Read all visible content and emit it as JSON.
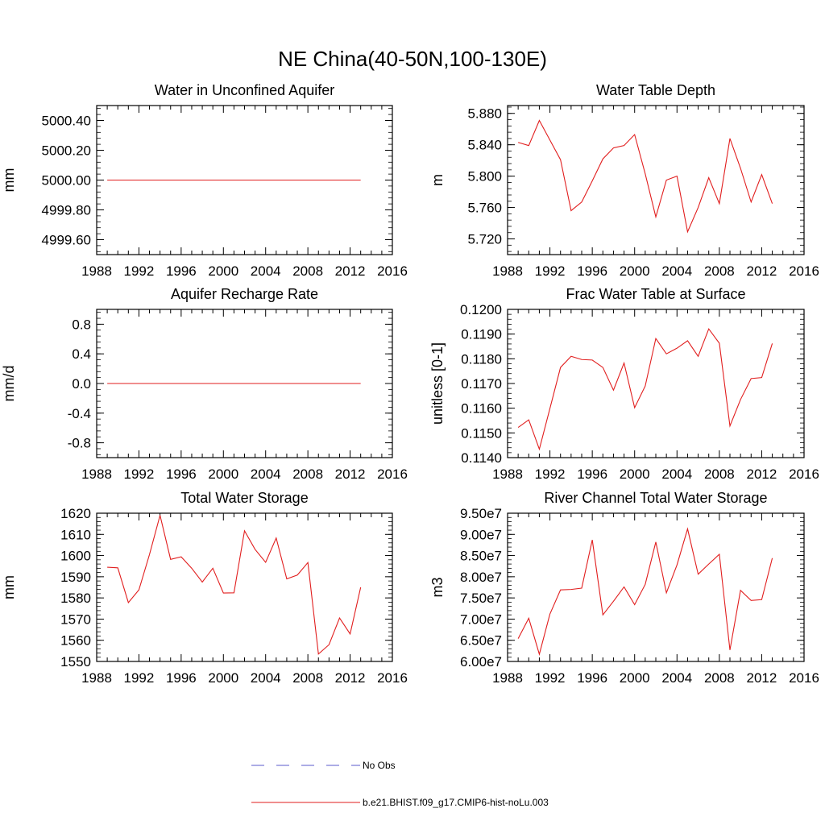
{
  "figure": {
    "title": "NE China(40-50N,100-130E)"
  },
  "legend": {
    "placement": "bottom-center",
    "entries": [
      {
        "label": "No Obs",
        "color": "#5a5acc",
        "style": "dashed"
      },
      {
        "label": "b.e21.BHIST.f09_g17.CMIP6-hist-noLu.003",
        "color": "#e11e1e",
        "style": "solid"
      }
    ]
  },
  "chart_data": [
    {
      "type": "line",
      "title": "Water in Unconfined Aquifer",
      "ylabel": "mm",
      "xlim": [
        1988,
        2016
      ],
      "ylim": [
        4999.5,
        5000.5
      ],
      "xticks": [
        "1988",
        "1992",
        "1996",
        "2000",
        "2004",
        "2008",
        "2012",
        "2016"
      ],
      "yticks": [
        {
          "value": 4999.6,
          "label": "4999.60"
        },
        {
          "value": 4999.8,
          "label": "4999.80"
        },
        {
          "value": 5000.0,
          "label": "5000.00"
        },
        {
          "value": 5000.2,
          "label": "5000.20"
        },
        {
          "value": 5000.4,
          "label": "5000.40"
        }
      ],
      "x": [
        1989,
        1990,
        1991,
        1992,
        1993,
        1994,
        1995,
        1996,
        1997,
        1998,
        1999,
        2000,
        2001,
        2002,
        2003,
        2004,
        2005,
        2006,
        2007,
        2008,
        2009,
        2010,
        2011,
        2012,
        2013
      ],
      "series": [
        {
          "color": "#e11e1e",
          "values": [
            5000.0,
            5000.0,
            5000.0,
            5000.0,
            5000.0,
            5000.0,
            5000.0,
            5000.0,
            5000.0,
            5000.0,
            5000.0,
            5000.0,
            5000.0,
            5000.0,
            5000.0,
            5000.0,
            5000.0,
            5000.0,
            5000.0,
            5000.0,
            5000.0,
            5000.0,
            5000.0,
            5000.0,
            5000.0
          ]
        }
      ]
    },
    {
      "type": "line",
      "title": "Water Table Depth",
      "ylabel": "m",
      "xlim": [
        1988,
        2016
      ],
      "ylim": [
        5.7,
        5.89
      ],
      "xticks": [
        "1988",
        "1992",
        "1996",
        "2000",
        "2004",
        "2008",
        "2012",
        "2016"
      ],
      "yticks": [
        {
          "value": 5.72,
          "label": "5.720"
        },
        {
          "value": 5.76,
          "label": "5.760"
        },
        {
          "value": 5.8,
          "label": "5.800"
        },
        {
          "value": 5.84,
          "label": "5.840"
        },
        {
          "value": 5.88,
          "label": "5.880"
        }
      ],
      "x": [
        1989,
        1990,
        1991,
        1992,
        1993,
        1994,
        1995,
        1996,
        1997,
        1998,
        1999,
        2000,
        2001,
        2002,
        2003,
        2004,
        2005,
        2006,
        2007,
        2008,
        2009,
        2010,
        2011,
        2012,
        2013
      ],
      "series": [
        {
          "color": "#e11e1e",
          "values": [
            5.843,
            5.839,
            5.871,
            5.846,
            5.821,
            5.756,
            5.767,
            5.794,
            5.822,
            5.836,
            5.839,
            5.853,
            5.803,
            5.748,
            5.795,
            5.8,
            5.729,
            5.76,
            5.798,
            5.765,
            5.848,
            5.81,
            5.767,
            5.802,
            5.765
          ]
        }
      ]
    },
    {
      "type": "line",
      "title": "Aquifer Recharge Rate",
      "ylabel": "mm/d",
      "xlim": [
        1988,
        2016
      ],
      "ylim": [
        -1.0,
        1.0
      ],
      "xticks": [
        "1988",
        "1992",
        "1996",
        "2000",
        "2004",
        "2008",
        "2012",
        "2016"
      ],
      "yticks": [
        {
          "value": -0.8,
          "label": "-0.8"
        },
        {
          "value": -0.4,
          "label": "-0.4"
        },
        {
          "value": 0.0,
          "label": "0.0"
        },
        {
          "value": 0.4,
          "label": "0.4"
        },
        {
          "value": 0.8,
          "label": "0.8"
        }
      ],
      "x": [
        1989,
        1990,
        1991,
        1992,
        1993,
        1994,
        1995,
        1996,
        1997,
        1998,
        1999,
        2000,
        2001,
        2002,
        2003,
        2004,
        2005,
        2006,
        2007,
        2008,
        2009,
        2010,
        2011,
        2012,
        2013
      ],
      "series": [
        {
          "color": "#e11e1e",
          "values": [
            0,
            0,
            0,
            0,
            0,
            0,
            0,
            0,
            0,
            0,
            0,
            0,
            0,
            0,
            0,
            0,
            0,
            0,
            0,
            0,
            0,
            0,
            0,
            0,
            0
          ]
        }
      ]
    },
    {
      "type": "line",
      "title": "Frac Water Table at Surface",
      "ylabel": "unitless [0-1]",
      "xlim": [
        1988,
        2016
      ],
      "ylim": [
        0.114,
        0.12
      ],
      "xticks": [
        "1988",
        "1992",
        "1996",
        "2000",
        "2004",
        "2008",
        "2012",
        "2016"
      ],
      "yticks": [
        {
          "value": 0.114,
          "label": "0.1140"
        },
        {
          "value": 0.115,
          "label": "0.1150"
        },
        {
          "value": 0.116,
          "label": "0.1160"
        },
        {
          "value": 0.117,
          "label": "0.1170"
        },
        {
          "value": 0.118,
          "label": "0.1180"
        },
        {
          "value": 0.119,
          "label": "0.1190"
        },
        {
          "value": 0.12,
          "label": "0.1200"
        }
      ],
      "x": [
        1989,
        1990,
        1991,
        1992,
        1993,
        1994,
        1995,
        1996,
        1997,
        1998,
        1999,
        2000,
        2001,
        2002,
        2003,
        2004,
        2005,
        2006,
        2007,
        2008,
        2009,
        2010,
        2011,
        2012,
        2013
      ],
      "series": [
        {
          "color": "#e11e1e",
          "values": [
            0.11522,
            0.11553,
            0.11434,
            0.11599,
            0.11765,
            0.1181,
            0.11797,
            0.11795,
            0.11765,
            0.11673,
            0.11783,
            0.11602,
            0.1169,
            0.11882,
            0.1182,
            0.11843,
            0.11873,
            0.1181,
            0.11921,
            0.11863,
            0.11528,
            0.11635,
            0.1172,
            0.11724,
            0.11862
          ]
        }
      ]
    },
    {
      "type": "line",
      "title": "Total Water Storage",
      "ylabel": "mm",
      "xlim": [
        1988,
        2016
      ],
      "ylim": [
        1550,
        1620
      ],
      "xticks": [
        "1988",
        "1992",
        "1996",
        "2000",
        "2004",
        "2008",
        "2012",
        "2016"
      ],
      "yticks": [
        {
          "value": 1550,
          "label": "1550"
        },
        {
          "value": 1560,
          "label": "1560"
        },
        {
          "value": 1570,
          "label": "1570"
        },
        {
          "value": 1580,
          "label": "1580"
        },
        {
          "value": 1590,
          "label": "1590"
        },
        {
          "value": 1600,
          "label": "1600"
        },
        {
          "value": 1610,
          "label": "1610"
        },
        {
          "value": 1620,
          "label": "1620"
        }
      ],
      "x": [
        1989,
        1990,
        1991,
        1992,
        1993,
        1994,
        1995,
        1996,
        1997,
        1998,
        1999,
        2000,
        2001,
        2002,
        2003,
        2004,
        2005,
        2006,
        2007,
        2008,
        2009,
        2010,
        2011,
        2012,
        2013
      ],
      "series": [
        {
          "color": "#e11e1e",
          "values": [
            1594.5,
            1594.2,
            1577.8,
            1583.8,
            1600.5,
            1619.0,
            1598.2,
            1599.4,
            1594.0,
            1587.5,
            1594.0,
            1582.3,
            1582.4,
            1611.7,
            1602.9,
            1596.8,
            1608.3,
            1589.0,
            1590.8,
            1596.7,
            1553.5,
            1557.9,
            1570.5,
            1563.0,
            1585.0
          ]
        }
      ]
    },
    {
      "type": "line",
      "title": "River Channel Total Water Storage",
      "ylabel": "m3",
      "xlim": [
        1988,
        2016
      ],
      "ylim": [
        60000000,
        95000000
      ],
      "xticks": [
        "1988",
        "1992",
        "1996",
        "2000",
        "2004",
        "2008",
        "2012",
        "2016"
      ],
      "yticks": [
        {
          "value": 60000000,
          "label": "6.00e7"
        },
        {
          "value": 65000000,
          "label": "6.50e7"
        },
        {
          "value": 70000000,
          "label": "7.00e7"
        },
        {
          "value": 75000000,
          "label": "7.50e7"
        },
        {
          "value": 80000000,
          "label": "8.00e7"
        },
        {
          "value": 85000000,
          "label": "8.50e7"
        },
        {
          "value": 90000000,
          "label": "9.00e7"
        },
        {
          "value": 95000000,
          "label": "9.50e7"
        }
      ],
      "x": [
        1989,
        1990,
        1991,
        1992,
        1993,
        1994,
        1995,
        1996,
        1997,
        1998,
        1999,
        2000,
        2001,
        2002,
        2003,
        2004,
        2005,
        2006,
        2007,
        2008,
        2009,
        2010,
        2011,
        2012,
        2013
      ],
      "series": [
        {
          "color": "#e11e1e",
          "values": [
            65400000,
            70200000,
            61700000,
            71200000,
            76900000,
            77000000,
            77300000,
            88700000,
            71000000,
            74200000,
            77600000,
            73400000,
            78200000,
            88200000,
            76200000,
            82800000,
            91300000,
            80600000,
            83000000,
            85300000,
            62700000,
            76800000,
            74400000,
            74600000,
            84400000
          ]
        }
      ]
    }
  ]
}
